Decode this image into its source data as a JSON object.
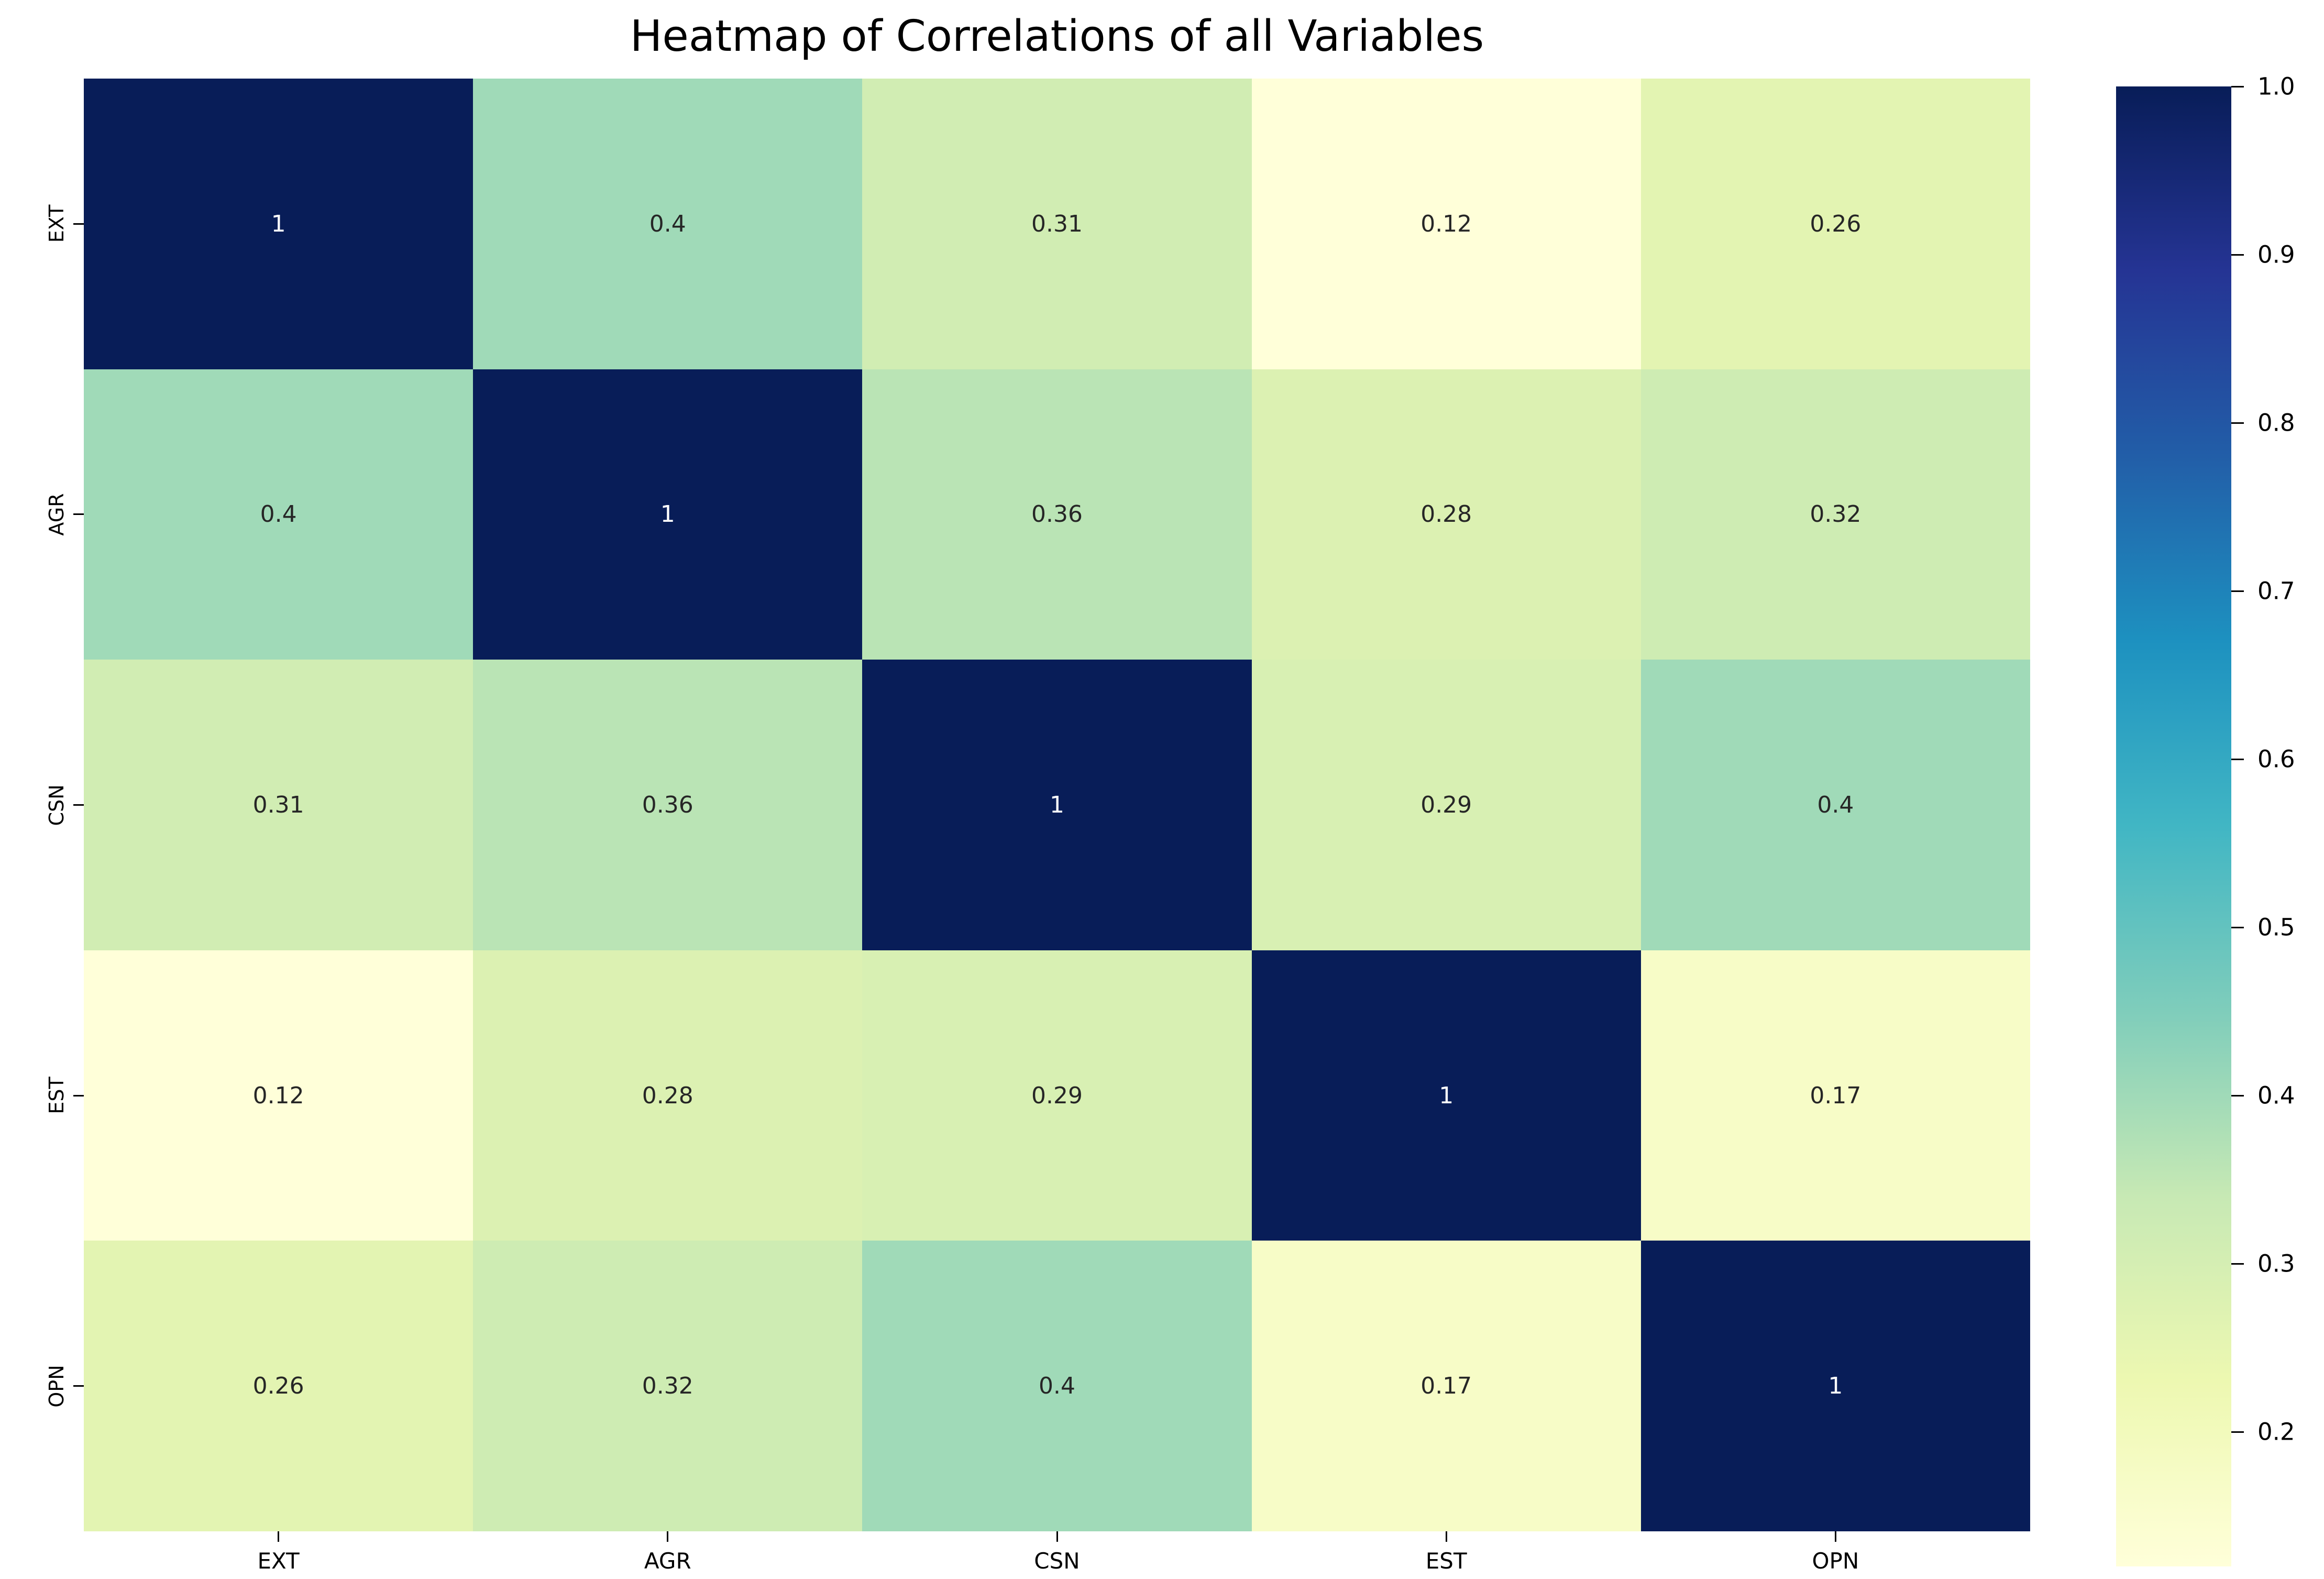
{
  "title": "Heatmap of Correlations of all Variables",
  "chart_data": {
    "type": "heatmap",
    "categories": [
      "EXT",
      "AGR",
      "CSN",
      "EST",
      "OPN"
    ],
    "x_tick_labels": [
      "EXT",
      "AGR",
      "CSN",
      "EST",
      "OPN"
    ],
    "y_tick_labels": [
      "EXT",
      "AGR",
      "CSN",
      "EST",
      "OPN"
    ],
    "matrix": [
      [
        1,
        0.4,
        0.31,
        0.12,
        0.26
      ],
      [
        0.4,
        1,
        0.36,
        0.28,
        0.32
      ],
      [
        0.31,
        0.36,
        1,
        0.29,
        0.4
      ],
      [
        0.12,
        0.28,
        0.29,
        1,
        0.17
      ],
      [
        0.26,
        0.32,
        0.4,
        0.17,
        1
      ]
    ],
    "annotations": [
      [
        "1",
        "0.4",
        "0.31",
        "0.12",
        "0.26"
      ],
      [
        "0.4",
        "1",
        "0.36",
        "0.28",
        "0.32"
      ],
      [
        "0.31",
        "0.36",
        "1",
        "0.29",
        "0.4"
      ],
      [
        "0.12",
        "0.28",
        "0.29",
        "1",
        "0.17"
      ],
      [
        "0.26",
        "0.32",
        "0.4",
        "0.17",
        "1"
      ]
    ],
    "colormap": "YlGnBu",
    "colormap_stops": [
      "#ffffd9",
      "#edf8b1",
      "#c7e9b4",
      "#7fcdbb",
      "#41b6c4",
      "#1d91c0",
      "#225ea8",
      "#253494",
      "#081d58"
    ],
    "vmin": 0.12,
    "vmax": 1.0,
    "colorbar_ticks": [
      "1.0",
      "0.9",
      "0.8",
      "0.7",
      "0.6",
      "0.5",
      "0.4",
      "0.3",
      "0.2"
    ],
    "colorbar_tick_values": [
      1.0,
      0.9,
      0.8,
      0.7,
      0.6,
      0.5,
      0.4,
      0.3,
      0.2
    ],
    "legend_position": "right",
    "grid": false
  },
  "colors": {
    "annot_dark": "#262626",
    "annot_light": "#ffffff",
    "axis_text": "#000000",
    "background": "#ffffff"
  }
}
